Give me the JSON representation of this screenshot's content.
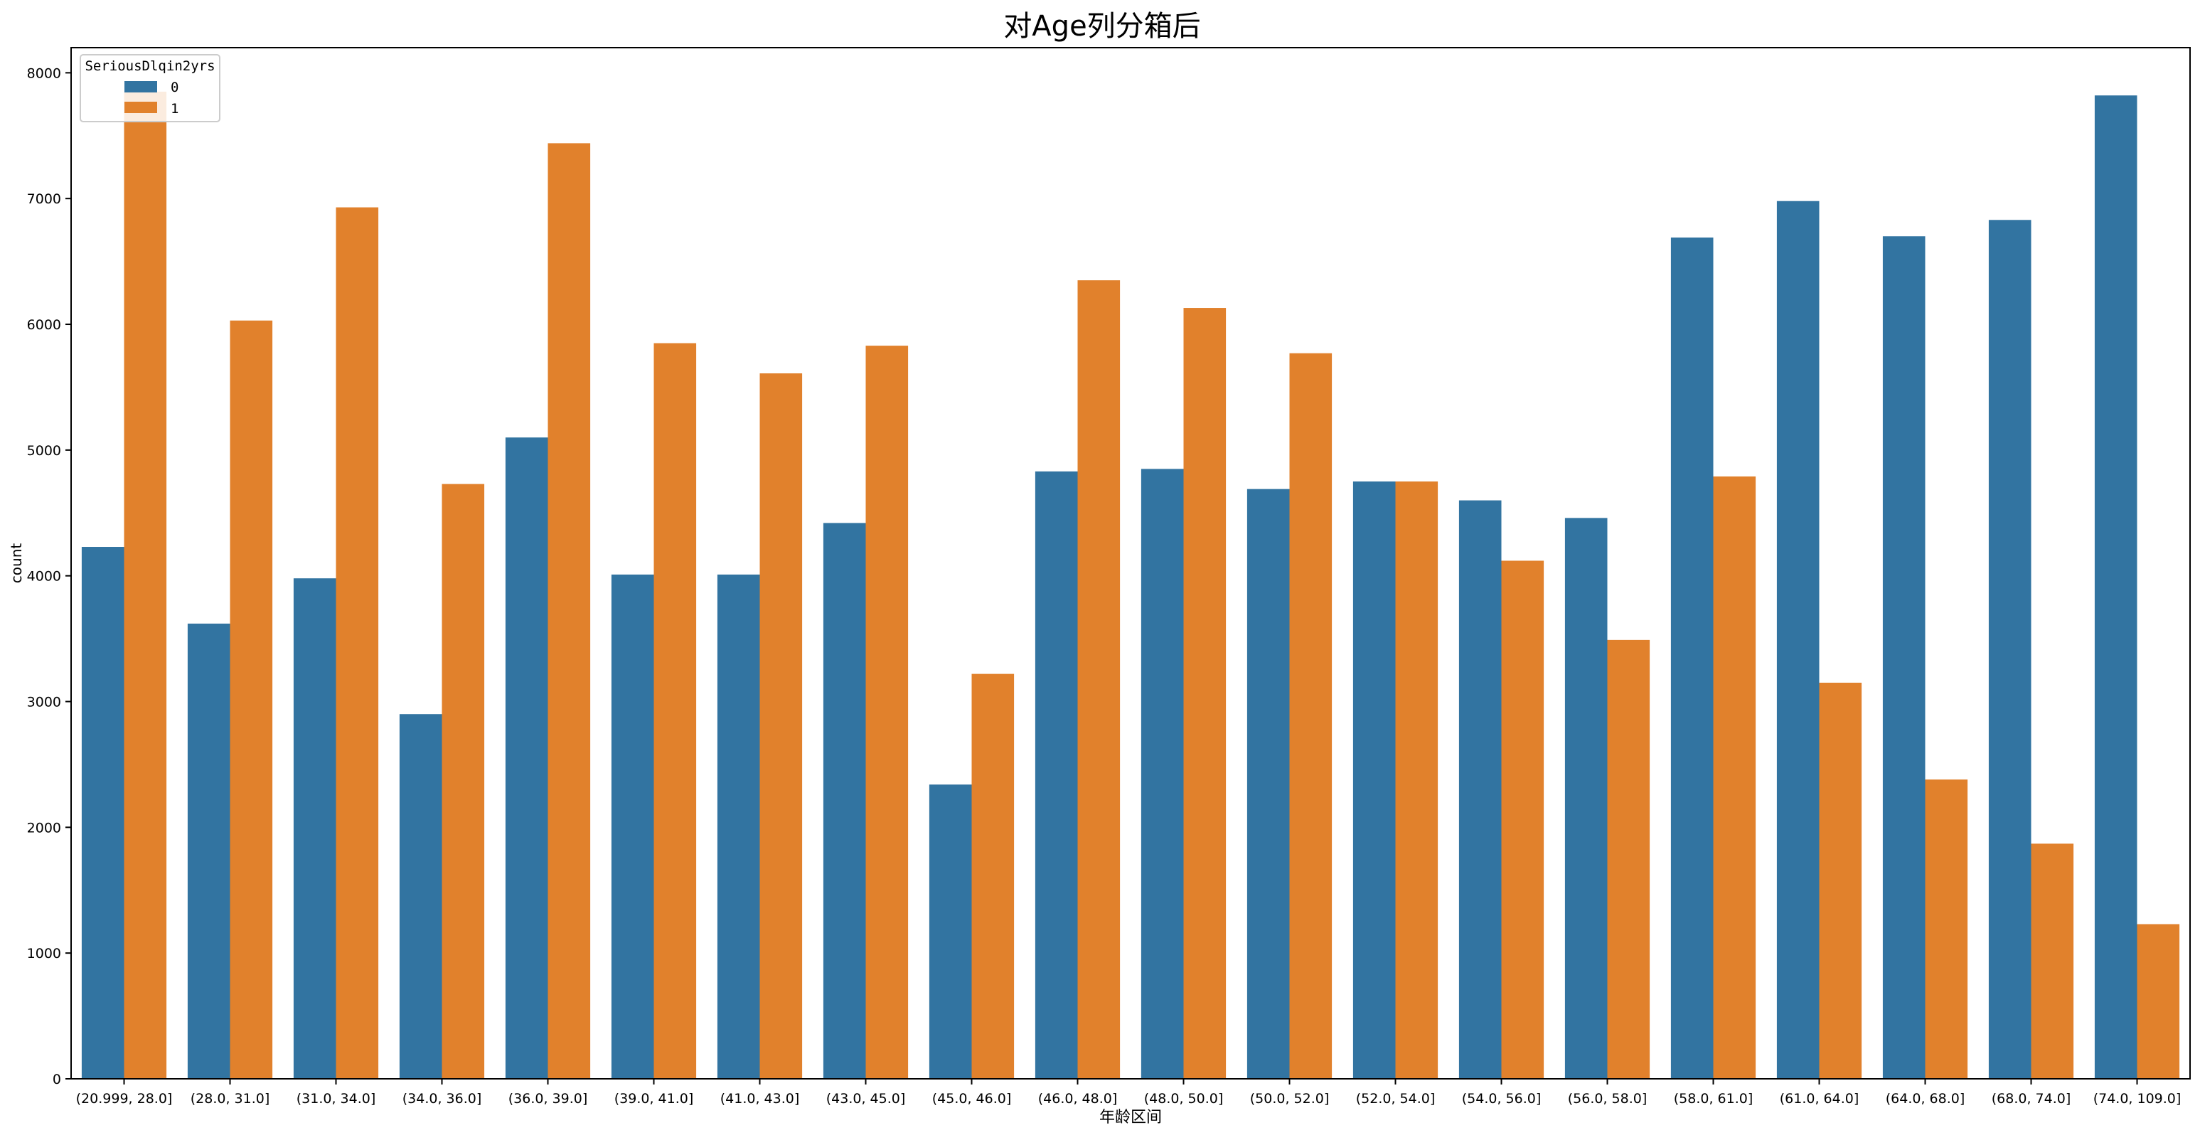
{
  "chart_data": {
    "type": "bar",
    "title": "对Age列分箱后",
    "xlabel": "年龄区间",
    "ylabel": "count",
    "ylim": [
      0,
      8200
    ],
    "yticks": [
      0,
      1000,
      2000,
      3000,
      4000,
      5000,
      6000,
      7000,
      8000
    ],
    "grid": false,
    "legend": {
      "title": "SeriousDlqin2yrs",
      "placement": "top-left"
    },
    "categories": [
      "(20.999, 28.0]",
      "(28.0, 31.0]",
      "(31.0, 34.0]",
      "(34.0, 36.0]",
      "(36.0, 39.0]",
      "(39.0, 41.0]",
      "(41.0, 43.0]",
      "(43.0, 45.0]",
      "(45.0, 46.0]",
      "(46.0, 48.0]",
      "(48.0, 50.0]",
      "(50.0, 52.0]",
      "(52.0, 54.0]",
      "(54.0, 56.0]",
      "(56.0, 58.0]",
      "(58.0, 61.0]",
      "(61.0, 64.0]",
      "(64.0, 68.0]",
      "(68.0, 74.0]",
      "(74.0, 109.0]"
    ],
    "series": [
      {
        "name": "0",
        "color": "#3274a1",
        "values": [
          4230,
          3620,
          3980,
          2900,
          5100,
          4010,
          4010,
          4420,
          2340,
          4830,
          4850,
          4690,
          4750,
          4600,
          4460,
          6690,
          6980,
          6700,
          6830,
          7820
        ]
      },
      {
        "name": "1",
        "color": "#e1812c",
        "values": [
          7850,
          6030,
          6930,
          4730,
          7440,
          5850,
          5610,
          5830,
          3220,
          6350,
          6130,
          5770,
          4750,
          4120,
          3490,
          4790,
          3150,
          2380,
          1870,
          1230
        ]
      }
    ]
  }
}
